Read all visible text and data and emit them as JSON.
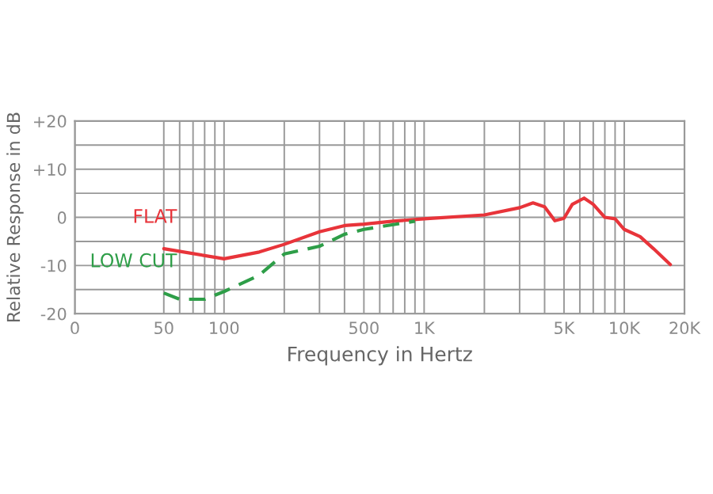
{
  "chart_data": {
    "type": "line",
    "xlabel": "Frequency in Hertz",
    "ylabel": "Relative Response in dB",
    "log": "x",
    "xlim": [
      0,
      20000
    ],
    "xticks": [
      0,
      50,
      100,
      500,
      {
        "value": 1000,
        "label": "1K"
      },
      {
        "value": 5000,
        "label": "5K"
      },
      {
        "value": 10000,
        "label": "10K"
      },
      {
        "value": 20000,
        "label": "20K"
      }
    ],
    "ylim": [
      -20,
      20
    ],
    "yticks": [
      -20,
      -10,
      0,
      {
        "value": 10,
        "label": "+10"
      },
      {
        "value": 20,
        "label": "+20"
      }
    ],
    "grid": true,
    "series": [
      {
        "name": "FLAT",
        "color": "#e8343a",
        "line_style": "solid",
        "x": [
          50,
          100,
          150,
          200,
          300,
          400,
          500,
          700,
          1000,
          2000,
          3000,
          3500,
          4000,
          4500,
          5000,
          5500,
          6300,
          7000,
          8000,
          9000,
          10000,
          12000,
          14000,
          17000
        ],
        "values": [
          -6.5,
          -8.6,
          -7.2,
          -5.6,
          -3,
          -1.7,
          -1.4,
          -0.8,
          -0.3,
          0.5,
          2,
          3,
          2.2,
          -0.7,
          -0.2,
          2.7,
          4,
          2.7,
          0,
          -0.3,
          -2.5,
          -4,
          -6.5,
          -9.8
        ]
      },
      {
        "name": "LOW CUT",
        "color": "#2e9e48",
        "line_style": "dashed",
        "x": [
          50,
          60,
          80,
          100,
          150,
          200,
          300,
          400,
          500,
          700,
          900
        ],
        "values": [
          -15.7,
          -17,
          -17,
          -15.4,
          -12,
          -7.6,
          -6,
          -3.5,
          -2.5,
          -1.5,
          -0.8
        ]
      }
    ]
  }
}
